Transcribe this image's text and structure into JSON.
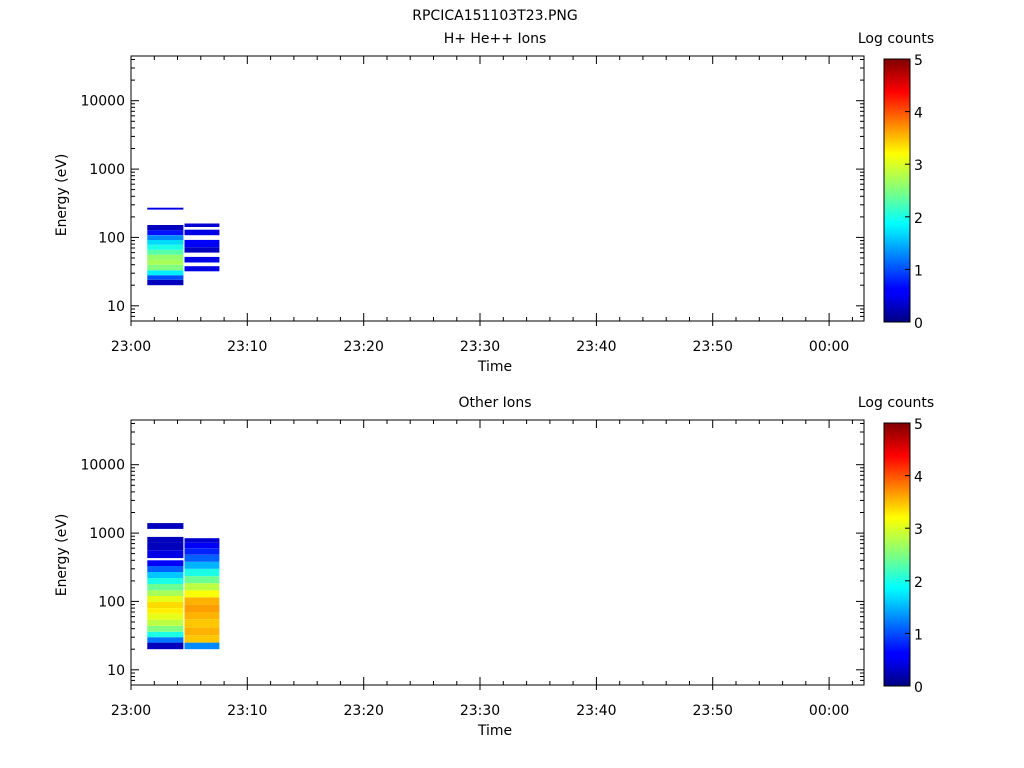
{
  "figure_title": "RPCICA151103T23.PNG",
  "chart_data": [
    {
      "type": "heatmap",
      "title": "H+ He++ Ions",
      "xlabel": "Time",
      "ylabel": "Energy (eV)",
      "x_ticks": [
        "23:00",
        "23:10",
        "23:20",
        "23:30",
        "23:40",
        "23:50",
        "00:00"
      ],
      "x_range_minutes": [
        0,
        63
      ],
      "y_scale": "log",
      "ylim": [
        6,
        45000
      ],
      "y_ticks": [
        "10",
        "100",
        "1000",
        "10000"
      ],
      "colorbar": {
        "label": "Log counts",
        "range": [
          0,
          5
        ],
        "ticks": [
          "0",
          "1",
          "2",
          "3",
          "4",
          "5"
        ]
      },
      "grid": false,
      "columns": [
        {
          "t0": 1.4,
          "t1": 4.5,
          "bins": [
            {
              "e0": 20,
              "e1": 24,
              "v": 0.3
            },
            {
              "e0": 24,
              "e1": 28,
              "v": 1.0
            },
            {
              "e0": 28,
              "e1": 33,
              "v": 1.8
            },
            {
              "e0": 33,
              "e1": 40,
              "v": 2.5
            },
            {
              "e0": 40,
              "e1": 47,
              "v": 2.7
            },
            {
              "e0": 47,
              "e1": 56,
              "v": 2.6
            },
            {
              "e0": 56,
              "e1": 66,
              "v": 2.3
            },
            {
              "e0": 66,
              "e1": 78,
              "v": 2.0
            },
            {
              "e0": 78,
              "e1": 92,
              "v": 1.7
            },
            {
              "e0": 92,
              "e1": 108,
              "v": 1.3
            },
            {
              "e0": 108,
              "e1": 128,
              "v": 0.7
            },
            {
              "e0": 128,
              "e1": 152,
              "v": 0.3
            },
            {
              "e0": 255,
              "e1": 272,
              "v": 0.5
            }
          ]
        },
        {
          "t0": 4.6,
          "t1": 7.6,
          "bins": [
            {
              "e0": 32,
              "e1": 38,
              "v": 0.5
            },
            {
              "e0": 43,
              "e1": 52,
              "v": 0.5
            },
            {
              "e0": 60,
              "e1": 72,
              "v": 0.3
            },
            {
              "e0": 72,
              "e1": 92,
              "v": 0.6
            },
            {
              "e0": 108,
              "e1": 130,
              "v": 0.5
            },
            {
              "e0": 142,
              "e1": 160,
              "v": 0.4
            }
          ]
        }
      ]
    },
    {
      "type": "heatmap",
      "title": "Other Ions",
      "xlabel": "Time",
      "ylabel": "Energy (eV)",
      "x_ticks": [
        "23:00",
        "23:10",
        "23:20",
        "23:30",
        "23:40",
        "23:50",
        "00:00"
      ],
      "x_range_minutes": [
        0,
        63
      ],
      "y_scale": "log",
      "ylim": [
        6,
        45000
      ],
      "y_ticks": [
        "10",
        "100",
        "1000",
        "10000"
      ],
      "colorbar": {
        "label": "Log counts",
        "range": [
          0,
          5
        ],
        "ticks": [
          "0",
          "1",
          "2",
          "3",
          "4",
          "5"
        ]
      },
      "grid": false,
      "columns": [
        {
          "t0": 1.4,
          "t1": 4.5,
          "bins": [
            {
              "e0": 20,
              "e1": 25,
              "v": 0.3
            },
            {
              "e0": 25,
              "e1": 30,
              "v": 1.2
            },
            {
              "e0": 30,
              "e1": 36,
              "v": 2.0
            },
            {
              "e0": 36,
              "e1": 44,
              "v": 2.5
            },
            {
              "e0": 44,
              "e1": 54,
              "v": 2.8
            },
            {
              "e0": 54,
              "e1": 66,
              "v": 3.0
            },
            {
              "e0": 66,
              "e1": 80,
              "v": 3.2
            },
            {
              "e0": 80,
              "e1": 98,
              "v": 3.3
            },
            {
              "e0": 98,
              "e1": 120,
              "v": 3.0
            },
            {
              "e0": 120,
              "e1": 145,
              "v": 2.7
            },
            {
              "e0": 145,
              "e1": 180,
              "v": 2.4
            },
            {
              "e0": 180,
              "e1": 220,
              "v": 2.0
            },
            {
              "e0": 220,
              "e1": 270,
              "v": 1.6
            },
            {
              "e0": 270,
              "e1": 330,
              "v": 1.1
            },
            {
              "e0": 330,
              "e1": 400,
              "v": 0.6
            },
            {
              "e0": 430,
              "e1": 560,
              "v": 0.5
            },
            {
              "e0": 560,
              "e1": 720,
              "v": 0.3
            },
            {
              "e0": 720,
              "e1": 880,
              "v": 0.3
            },
            {
              "e0": 1150,
              "e1": 1400,
              "v": 0.3
            }
          ]
        },
        {
          "t0": 4.6,
          "t1": 7.6,
          "bins": [
            {
              "e0": 20,
              "e1": 25,
              "v": 1.3
            },
            {
              "e0": 25,
              "e1": 32,
              "v": 3.4
            },
            {
              "e0": 32,
              "e1": 42,
              "v": 3.5
            },
            {
              "e0": 42,
              "e1": 55,
              "v": 3.4
            },
            {
              "e0": 55,
              "e1": 70,
              "v": 3.5
            },
            {
              "e0": 70,
              "e1": 90,
              "v": 3.6
            },
            {
              "e0": 90,
              "e1": 115,
              "v": 3.5
            },
            {
              "e0": 115,
              "e1": 145,
              "v": 3.1
            },
            {
              "e0": 145,
              "e1": 185,
              "v": 2.8
            },
            {
              "e0": 185,
              "e1": 235,
              "v": 2.4
            },
            {
              "e0": 235,
              "e1": 300,
              "v": 2.0
            },
            {
              "e0": 300,
              "e1": 380,
              "v": 1.5
            },
            {
              "e0": 380,
              "e1": 480,
              "v": 1.1
            },
            {
              "e0": 480,
              "e1": 600,
              "v": 0.8
            },
            {
              "e0": 600,
              "e1": 720,
              "v": 0.6
            },
            {
              "e0": 720,
              "e1": 840,
              "v": 0.4
            }
          ]
        }
      ]
    }
  ]
}
